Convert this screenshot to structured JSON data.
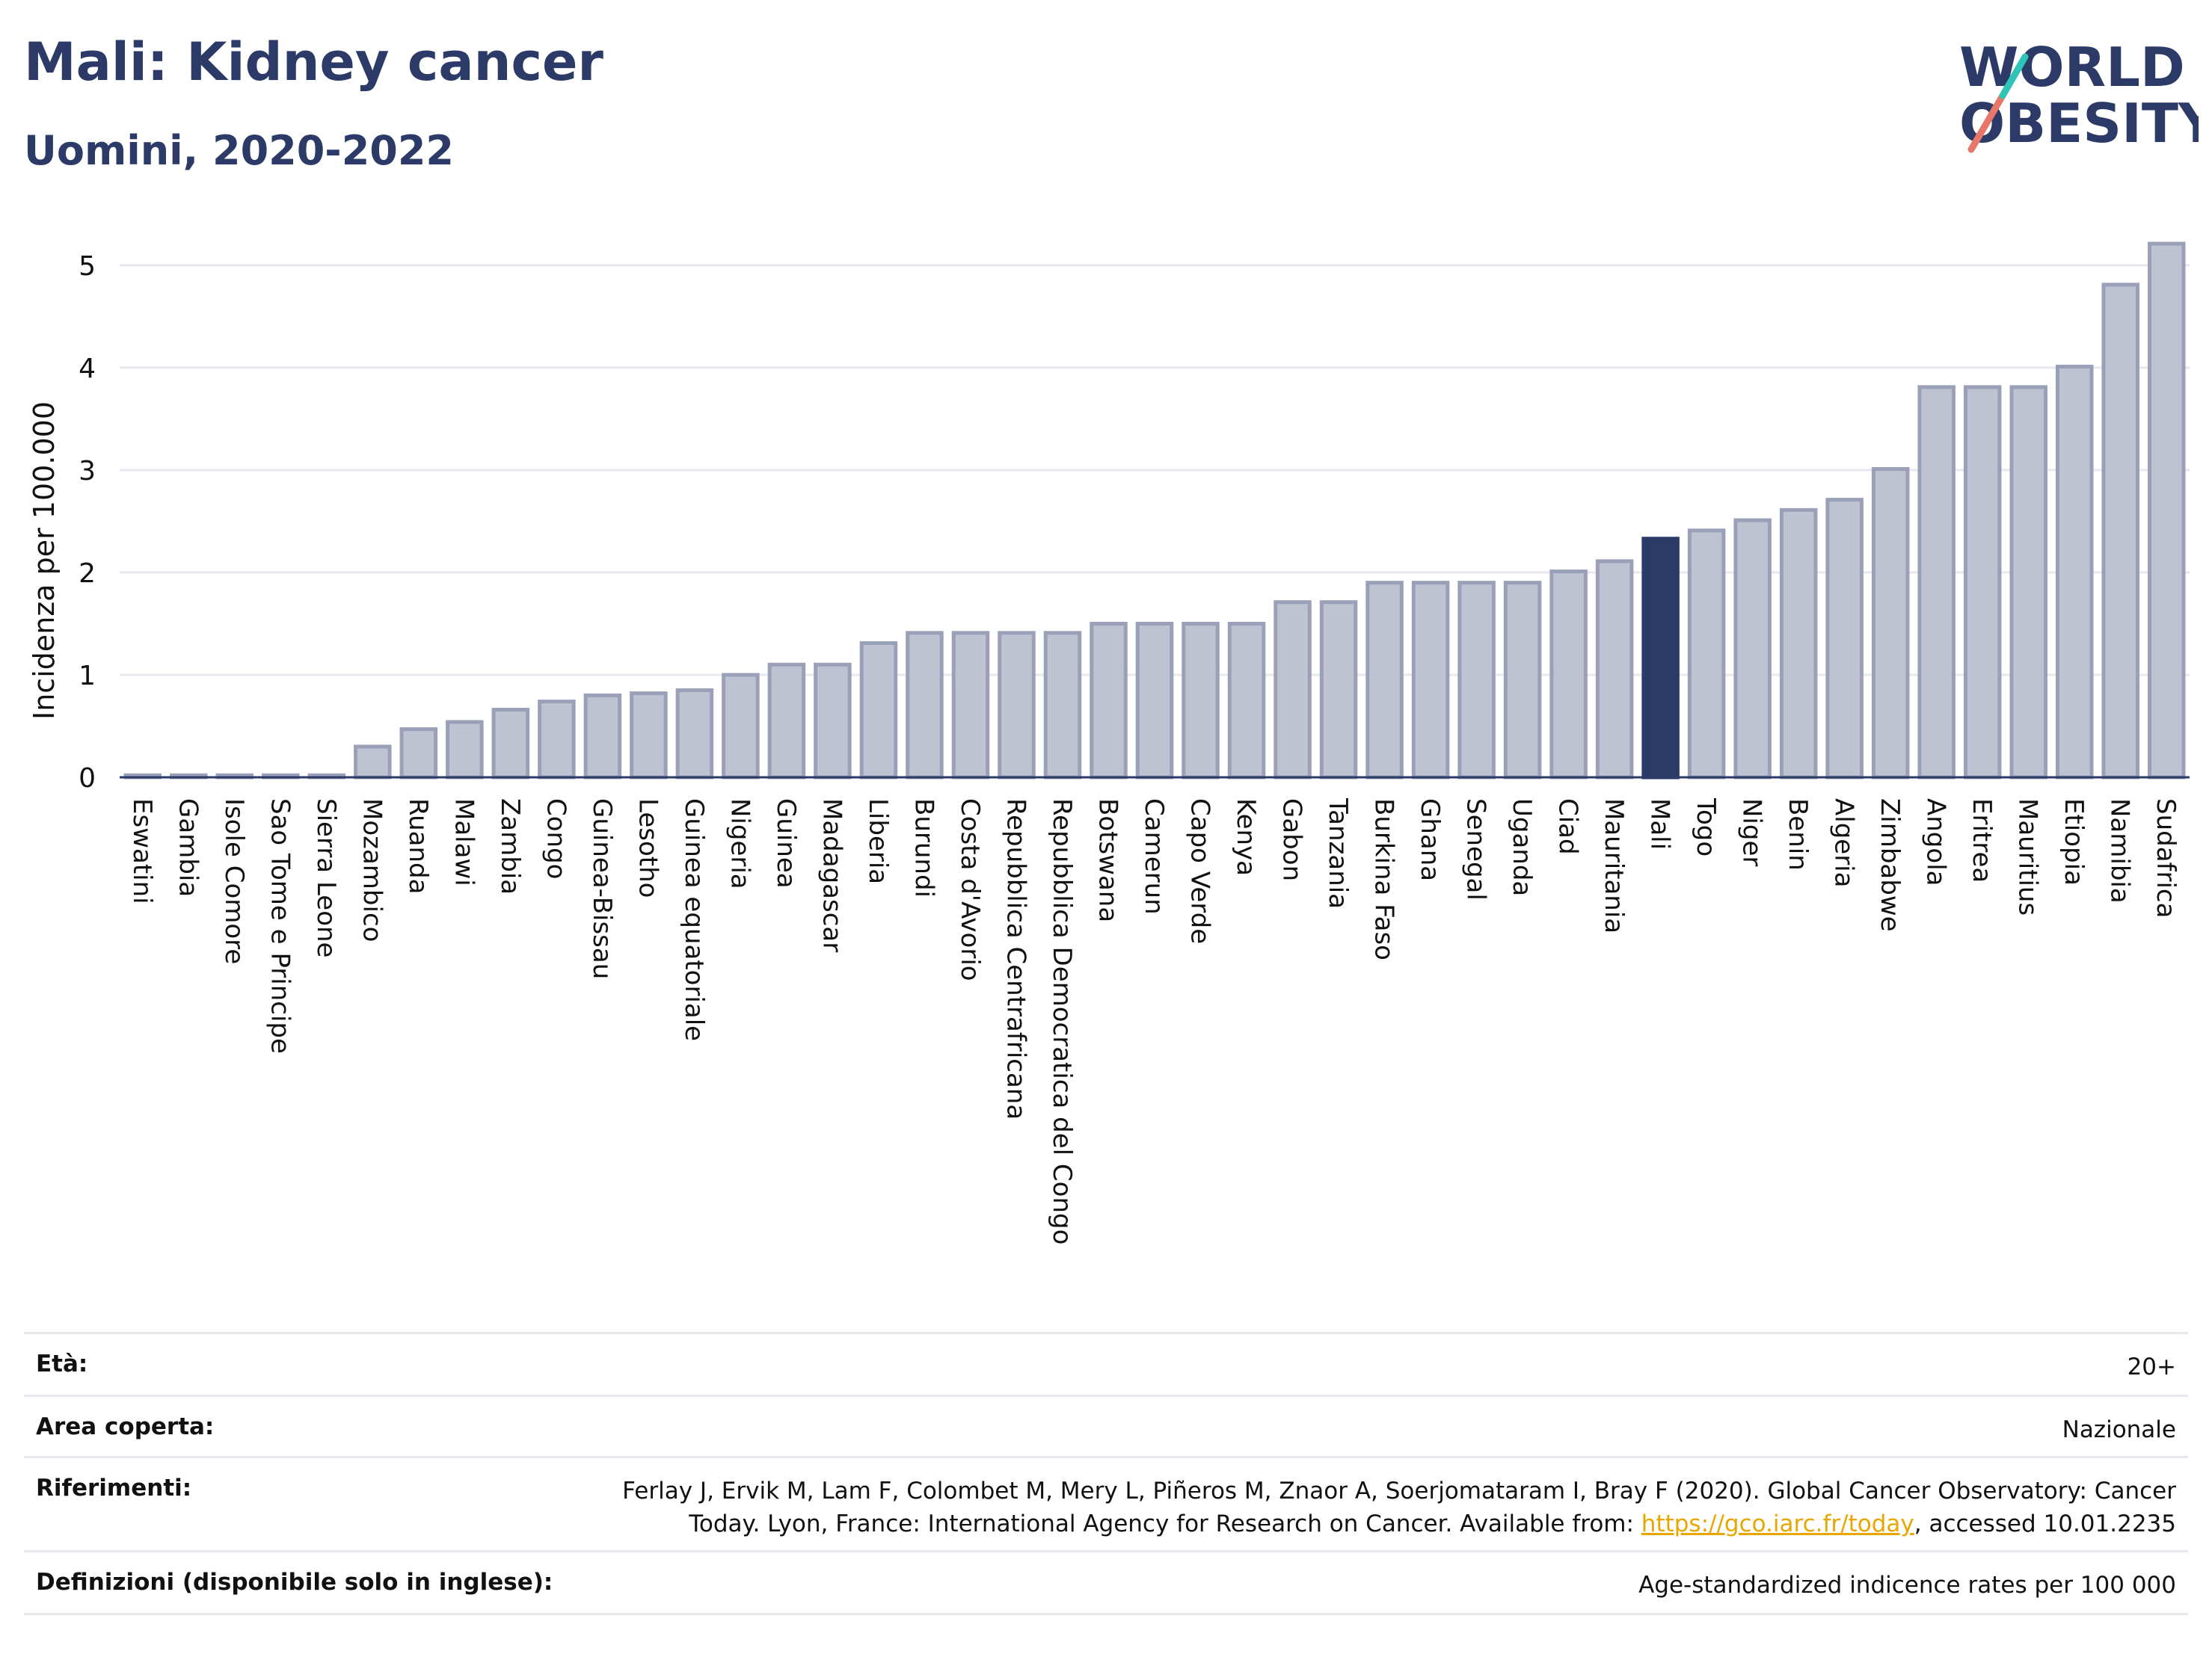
{
  "header": {
    "title": "Mali: Kidney cancer",
    "subtitle": "Uomini, 2020-2022"
  },
  "logo": {
    "line1": "WORLD",
    "line2": "OBESITY",
    "slash_colors": [
      "#e8776a",
      "#2ec4b6"
    ]
  },
  "colors": {
    "bar": "#bfc3d1",
    "bar_border": "#9aa0b7",
    "highlight": "#2b3a67",
    "text": "#111111",
    "grid": "#e6e8ee",
    "link": "#e8a700"
  },
  "chart_data": {
    "type": "bar",
    "ylabel": "Incidenza per 100.000",
    "ylim": [
      0,
      5.4
    ],
    "yticks": [
      0,
      1,
      2,
      3,
      4,
      5
    ],
    "highlight": "Mali",
    "categories": [
      "Eswatini",
      "Gambia",
      "Isole Comore",
      "Sao Tome e Principe",
      "Sierra Leone",
      "Mozambico",
      "Ruanda",
      "Malawi",
      "Zambia",
      "Congo",
      "Guinea-Bissau",
      "Lesotho",
      "Guinea equatoriale",
      "Nigeria",
      "Guinea",
      "Madagascar",
      "Liberia",
      "Burundi",
      "Costa d'Avorio",
      "Repubblica Centrafricana",
      "Repubblica Democratica del Congo",
      "Botswana",
      "Camerun",
      "Capo Verde",
      "Kenya",
      "Gabon",
      "Tanzania",
      "Burkina Faso",
      "Ghana",
      "Senegal",
      "Uganda",
      "Ciad",
      "Mauritania",
      "Mali",
      "Togo",
      "Niger",
      "Benin",
      "Algeria",
      "Zimbabwe",
      "Angola",
      "Eritrea",
      "Mauritius",
      "Etiopia",
      "Namibia",
      "Sudafrica"
    ],
    "values": [
      0.02,
      0.02,
      0.02,
      0.02,
      0.02,
      0.3,
      0.47,
      0.54,
      0.66,
      0.74,
      0.8,
      0.82,
      0.85,
      1.0,
      1.1,
      1.1,
      1.31,
      1.41,
      1.41,
      1.41,
      1.41,
      1.5,
      1.5,
      1.5,
      1.5,
      1.71,
      1.71,
      1.9,
      1.9,
      1.9,
      1.9,
      2.01,
      2.11,
      2.33,
      2.41,
      2.51,
      2.61,
      2.71,
      3.01,
      3.81,
      3.81,
      3.81,
      4.01,
      4.81,
      5.21
    ]
  },
  "meta": {
    "age_label": "Età:",
    "age_value": "20+",
    "coverage_label": "Area coperta:",
    "coverage_value": "Nazionale",
    "references_label": "Riferimenti:",
    "references_line1": "Ferlay J, Ervik M, Lam F, Colombet M, Mery L, Piñeros M, Znaor A, Soerjomataram I, Bray F (2020). Global Cancer Observatory: Cancer",
    "references_line2_pre": "Today. Lyon, France: International Agency for Research on Cancer. Available from: ",
    "references_link": "https://gco.iarc.fr/today",
    "references_line2_post": ", accessed 10.01.2235",
    "definitions_label": "Definizioni (disponibile solo in inglese):",
    "definitions_value": "Age-standardized indicence rates per 100 000"
  }
}
